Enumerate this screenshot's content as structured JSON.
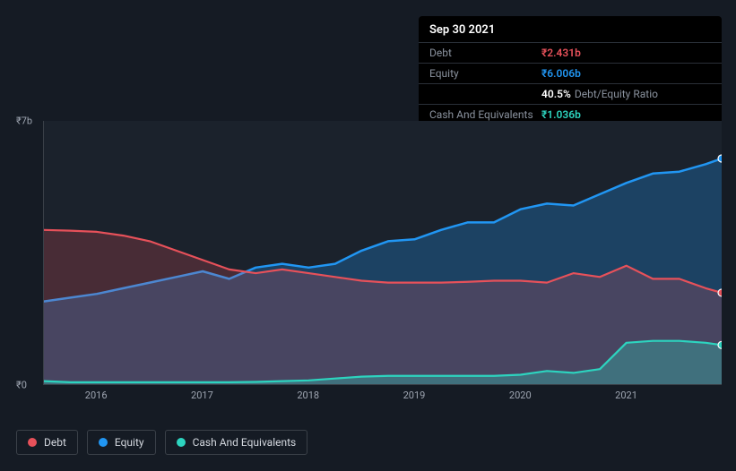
{
  "tooltip": {
    "date": "Sep 30 2021",
    "rows": [
      {
        "label": "Debt",
        "value": "₹2.431b",
        "color": "#e7515a"
      },
      {
        "label": "Equity",
        "value": "₹6.006b",
        "color": "#2196f3"
      },
      {
        "label": "",
        "value": "40.5%",
        "suffix": "Debt/Equity Ratio",
        "color": "#ffffff"
      },
      {
        "label": "Cash And Equivalents",
        "value": "₹1.036b",
        "color": "#2dd4bf"
      }
    ]
  },
  "chart": {
    "type": "area",
    "background_color": "#1b222c",
    "page_background": "#151b24",
    "grid_color": "#3a4048",
    "y_axis": {
      "min": 0,
      "max": 7,
      "ticks": [
        {
          "v": 0,
          "label": "₹0"
        },
        {
          "v": 7,
          "label": "₹7b"
        }
      ],
      "label_color": "#9fa6b2",
      "label_fontsize": 11
    },
    "x_axis": {
      "min": 2015.5,
      "max": 2021.9,
      "ticks": [
        2016,
        2017,
        2018,
        2019,
        2020,
        2021
      ],
      "label_color": "#9fa6b2",
      "label_fontsize": 11
    },
    "series": [
      {
        "name": "Equity",
        "color": "#2196f3",
        "fill_opacity": 0.28,
        "line_width": 2.5,
        "x": [
          2015.5,
          2015.75,
          2016.0,
          2016.25,
          2016.5,
          2016.75,
          2017.0,
          2017.25,
          2017.5,
          2017.75,
          2018.0,
          2018.25,
          2018.5,
          2018.75,
          2019.0,
          2019.25,
          2019.5,
          2019.75,
          2020.0,
          2020.25,
          2020.5,
          2020.75,
          2021.0,
          2021.25,
          2021.5,
          2021.75,
          2021.9
        ],
        "y": [
          2.2,
          2.3,
          2.4,
          2.55,
          2.7,
          2.85,
          3.0,
          2.8,
          3.1,
          3.2,
          3.1,
          3.2,
          3.55,
          3.8,
          3.85,
          4.1,
          4.3,
          4.3,
          4.65,
          4.8,
          4.75,
          5.05,
          5.35,
          5.6,
          5.65,
          5.85,
          6.0
        ]
      },
      {
        "name": "Debt",
        "color": "#e7515a",
        "fill_opacity": 0.22,
        "line_width": 2.2,
        "x": [
          2015.5,
          2015.75,
          2016.0,
          2016.25,
          2016.5,
          2016.75,
          2017.0,
          2017.25,
          2017.5,
          2017.75,
          2018.0,
          2018.25,
          2018.5,
          2018.75,
          2019.0,
          2019.25,
          2019.5,
          2019.75,
          2020.0,
          2020.25,
          2020.5,
          2020.75,
          2021.0,
          2021.25,
          2021.5,
          2021.75,
          2021.9
        ],
        "y": [
          4.1,
          4.08,
          4.05,
          3.95,
          3.8,
          3.55,
          3.3,
          3.05,
          2.95,
          3.05,
          2.95,
          2.85,
          2.75,
          2.7,
          2.7,
          2.7,
          2.72,
          2.75,
          2.75,
          2.7,
          2.95,
          2.85,
          3.15,
          2.8,
          2.8,
          2.55,
          2.43
        ]
      },
      {
        "name": "Cash And Equivalents",
        "color": "#2dd4bf",
        "fill_opacity": 0.3,
        "line_width": 2.2,
        "x": [
          2015.5,
          2015.75,
          2016.0,
          2016.25,
          2016.5,
          2016.75,
          2017.0,
          2017.25,
          2017.5,
          2017.75,
          2018.0,
          2018.25,
          2018.5,
          2018.75,
          2019.0,
          2019.25,
          2019.5,
          2019.75,
          2020.0,
          2020.25,
          2020.5,
          2020.75,
          2021.0,
          2021.25,
          2021.5,
          2021.75,
          2021.9
        ],
        "y": [
          0.08,
          0.05,
          0.05,
          0.05,
          0.05,
          0.05,
          0.05,
          0.05,
          0.06,
          0.08,
          0.1,
          0.15,
          0.2,
          0.22,
          0.22,
          0.22,
          0.22,
          0.22,
          0.25,
          0.35,
          0.3,
          0.4,
          1.1,
          1.15,
          1.15,
          1.1,
          1.04
        ]
      }
    ],
    "end_markers": true
  },
  "legend": {
    "items": [
      {
        "label": "Debt",
        "color": "#e7515a"
      },
      {
        "label": "Equity",
        "color": "#2196f3"
      },
      {
        "label": "Cash And Equivalents",
        "color": "#2dd4bf"
      }
    ],
    "border_color": "#3a4048",
    "text_color": "#d3d7de",
    "fontsize": 12
  }
}
